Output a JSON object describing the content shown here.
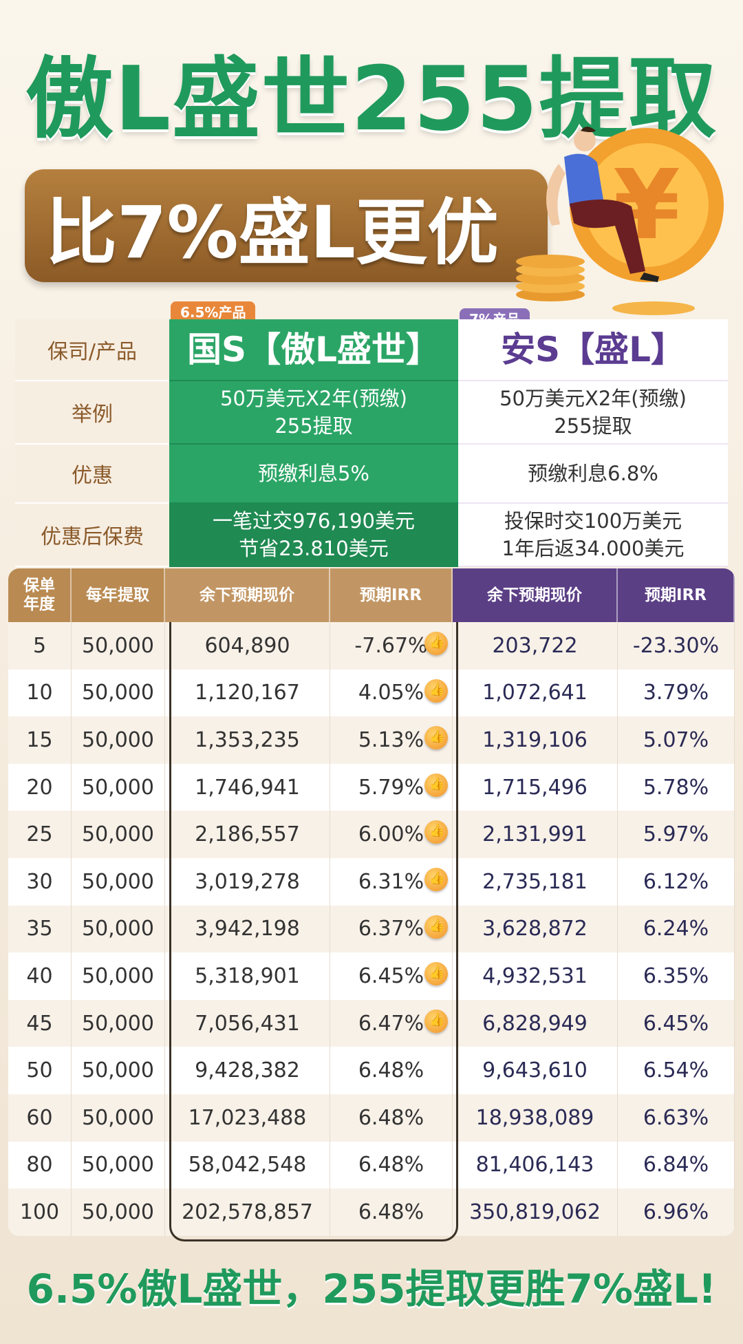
{
  "title": "傲L盛世255提取",
  "banner": "比7%盛L更优",
  "tags": {
    "gs": "6.5%产品",
    "as": "7%产品"
  },
  "top": {
    "labels": [
      "保司/产品",
      "举例",
      "优惠",
      "优惠后保费"
    ],
    "gs": {
      "name": "国S【傲L盛世】",
      "example": [
        "50万美元X2年(预缴)",
        "255提取"
      ],
      "discount": "预缴利息5%",
      "premium": [
        "一笔过交976,190美元",
        "节省23.810美元"
      ]
    },
    "as": {
      "name": "安S【盛L】",
      "example": [
        "50万美元X2年(预缴)",
        "255提取"
      ],
      "discount": "预缴利息6.8%",
      "premium": [
        "投保时交100万美元",
        "1年后返34.000美元"
      ]
    }
  },
  "headers": [
    "保单\n年度",
    "每年提取",
    "余下预期现价",
    "预期IRR",
    "余下预期现价",
    "预期IRR"
  ],
  "rows": [
    [
      "5",
      "50,000",
      "604,890",
      "-7.67%",
      "203,722",
      "-23.30%"
    ],
    [
      "10",
      "50,000",
      "1,120,167",
      "4.05%",
      "1,072,641",
      "3.79%"
    ],
    [
      "15",
      "50,000",
      "1,353,235",
      "5.13%",
      "1,319,106",
      "5.07%"
    ],
    [
      "20",
      "50,000",
      "1,746,941",
      "5.79%",
      "1,715,496",
      "5.78%"
    ],
    [
      "25",
      "50,000",
      "2,186,557",
      "6.00%",
      "2,131,991",
      "5.97%"
    ],
    [
      "30",
      "50,000",
      "3,019,278",
      "6.31%",
      "2,735,181",
      "6.12%"
    ],
    [
      "35",
      "50,000",
      "3,942,198",
      "6.37%",
      "3,628,872",
      "6.24%"
    ],
    [
      "40",
      "50,000",
      "5,318,901",
      "6.45%",
      "4,932,531",
      "6.35%"
    ],
    [
      "45",
      "50,000",
      "7,056,431",
      "6.47%",
      "6,828,949",
      "6.45%"
    ],
    [
      "50",
      "50,000",
      "9,428,382",
      "6.48%",
      "9,643,610",
      "6.54%"
    ],
    [
      "60",
      "50,000",
      "17,023,488",
      "6.48%",
      "18,938,089",
      "6.63%"
    ],
    [
      "80",
      "50,000",
      "58,042,548",
      "6.48%",
      "81,406,143",
      "6.84%"
    ],
    [
      "100",
      "50,000",
      "202,578,857",
      "6.48%",
      "350,819,062",
      "6.96%"
    ]
  ],
  "thumb_rows": 9,
  "footer": "6.5%傲L盛世，255提取更胜7%盛L!"
}
